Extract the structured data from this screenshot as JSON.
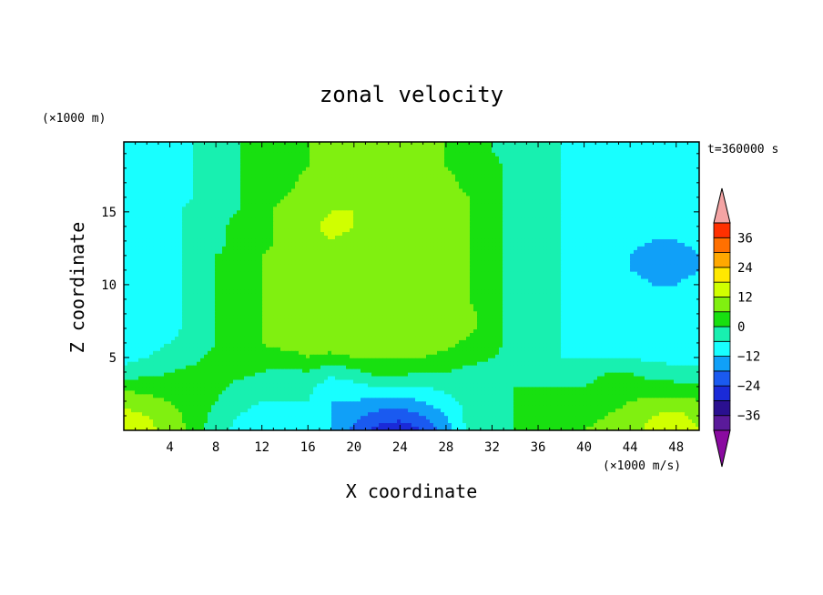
{
  "chart_data": {
    "type": "heatmap",
    "title": "zonal velocity",
    "xlabel": "X coordinate",
    "ylabel": "Z coordinate",
    "x_unit_label": "(×1000 m/s)",
    "y_unit_label": "(×1000 m)",
    "time_label": "t=360000 s",
    "xlim": [
      0,
      50
    ],
    "ylim": [
      0,
      19.8
    ],
    "x_ticks": [
      4,
      8,
      12,
      16,
      20,
      24,
      28,
      32,
      36,
      40,
      44,
      48
    ],
    "y_ticks": [
      5,
      10,
      15
    ],
    "colorbar": {
      "levels": [
        -42,
        -36,
        -30,
        -24,
        -18,
        -12,
        -6,
        0,
        6,
        12,
        18,
        24,
        30,
        36,
        42
      ],
      "tick_labels": [
        "36",
        "24",
        "12",
        "0",
        "−12",
        "−24",
        "−36"
      ],
      "tick_values": [
        36,
        24,
        12,
        0,
        -12,
        -24,
        -36
      ],
      "colors": [
        "#5a1a9a",
        "#2a1090",
        "#1a2ad8",
        "#1a5af0",
        "#10a0f8",
        "#18ffff",
        "#18f0b0",
        "#18e010",
        "#80f010",
        "#d0ff00",
        "#ffe800",
        "#ffa800",
        "#ff7000",
        "#ff3000",
        "#e01818"
      ],
      "under_color": "#8a0aa0",
      "over_color": "#f4a4a4"
    },
    "field": {
      "description_levels": "values in x1000 m/s at a coarse grid",
      "x": [
        0,
        2,
        4,
        6,
        8,
        10,
        12,
        14,
        16,
        18,
        20,
        22,
        24,
        26,
        28,
        30,
        32,
        34,
        36,
        38,
        40,
        42,
        44,
        46,
        48,
        50
      ],
      "z": [
        0,
        1,
        2,
        3,
        4,
        5,
        6,
        7,
        8,
        9,
        10,
        11,
        12,
        13,
        14,
        15,
        16,
        17,
        18,
        19,
        20
      ],
      "values": [
        [
          16,
          14,
          10,
          4,
          -4,
          -8,
          -10,
          -12,
          -10,
          -12,
          -20,
          -26,
          -28,
          -24,
          -16,
          -4,
          -2,
          0,
          0,
          4,
          6,
          8,
          10,
          14,
          16,
          12
        ],
        [
          14,
          12,
          8,
          4,
          -2,
          -6,
          -8,
          -10,
          -8,
          -12,
          -16,
          -20,
          -22,
          -18,
          -12,
          -4,
          -2,
          0,
          0,
          2,
          4,
          6,
          8,
          12,
          14,
          10
        ],
        [
          10,
          8,
          6,
          4,
          0,
          -4,
          -6,
          -6,
          -6,
          -12,
          -12,
          -14,
          -14,
          -12,
          -8,
          -4,
          -2,
          0,
          0,
          0,
          2,
          4,
          6,
          8,
          8,
          6
        ],
        [
          4,
          4,
          2,
          2,
          2,
          -2,
          -4,
          -4,
          -4,
          -10,
          -8,
          -6,
          -6,
          -6,
          -4,
          -2,
          -2,
          0,
          0,
          0,
          0,
          2,
          2,
          2,
          2,
          2
        ],
        [
          -4,
          -2,
          0,
          2,
          4,
          2,
          0,
          -2,
          0,
          -4,
          -2,
          2,
          2,
          0,
          0,
          -2,
          -2,
          -2,
          -2,
          -4,
          -2,
          0,
          0,
          -2,
          -4,
          -4
        ],
        [
          -8,
          -6,
          -4,
          -2,
          2,
          4,
          4,
          4,
          6,
          4,
          6,
          6,
          6,
          6,
          4,
          2,
          0,
          -2,
          -4,
          -6,
          -6,
          -6,
          -6,
          -8,
          -8,
          -8
        ],
        [
          -8,
          -8,
          -6,
          -4,
          0,
          4,
          6,
          8,
          8,
          10,
          10,
          10,
          10,
          10,
          8,
          4,
          2,
          -2,
          -4,
          -6,
          -8,
          -8,
          -8,
          -8,
          -10,
          -10
        ],
        [
          -10,
          -8,
          -8,
          -4,
          0,
          4,
          6,
          8,
          10,
          10,
          12,
          12,
          12,
          12,
          12,
          8,
          2,
          -2,
          -4,
          -6,
          -8,
          -8,
          -10,
          -10,
          -10,
          -10
        ],
        [
          -12,
          -10,
          -8,
          -4,
          0,
          4,
          6,
          8,
          10,
          10,
          10,
          10,
          10,
          10,
          12,
          8,
          2,
          -2,
          -4,
          -6,
          -8,
          -8,
          -10,
          -10,
          -10,
          -10
        ],
        [
          -12,
          -10,
          -8,
          -4,
          0,
          2,
          6,
          8,
          8,
          8,
          8,
          10,
          10,
          10,
          10,
          6,
          2,
          -2,
          -4,
          -6,
          -8,
          -8,
          -10,
          -10,
          -10,
          -10
        ],
        [
          -12,
          -10,
          -8,
          -4,
          0,
          2,
          6,
          8,
          8,
          8,
          10,
          10,
          10,
          10,
          10,
          6,
          2,
          -2,
          -4,
          -6,
          -8,
          -10,
          -10,
          -12,
          -12,
          -10
        ],
        [
          -12,
          -10,
          -8,
          -4,
          0,
          2,
          6,
          8,
          8,
          10,
          10,
          10,
          10,
          10,
          10,
          6,
          2,
          -2,
          -4,
          -6,
          -8,
          -10,
          -12,
          -14,
          -14,
          -12
        ],
        [
          -12,
          -10,
          -8,
          -4,
          0,
          2,
          6,
          8,
          10,
          10,
          10,
          10,
          10,
          10,
          10,
          6,
          2,
          -2,
          -4,
          -6,
          -8,
          -10,
          -12,
          -16,
          -16,
          -12
        ],
        [
          -12,
          -10,
          -8,
          -4,
          -2,
          2,
          4,
          8,
          10,
          12,
          10,
          10,
          10,
          10,
          10,
          6,
          2,
          -2,
          -4,
          -6,
          -8,
          -10,
          -10,
          -12,
          -12,
          -10
        ],
        [
          -10,
          -10,
          -8,
          -4,
          -2,
          2,
          4,
          8,
          10,
          14,
          12,
          10,
          10,
          10,
          10,
          6,
          2,
          -2,
          -4,
          -6,
          -8,
          -10,
          -10,
          -10,
          -10,
          -10
        ],
        [
          -10,
          -10,
          -8,
          -4,
          -2,
          0,
          4,
          8,
          10,
          12,
          12,
          10,
          10,
          10,
          10,
          6,
          2,
          -2,
          -4,
          -6,
          -8,
          -8,
          -10,
          -10,
          -10,
          -10
        ],
        [
          -10,
          -10,
          -8,
          -6,
          -2,
          0,
          4,
          6,
          8,
          10,
          10,
          10,
          10,
          10,
          8,
          6,
          2,
          -2,
          -4,
          -6,
          -8,
          -8,
          -8,
          -10,
          -10,
          -10
        ],
        [
          -10,
          -10,
          -8,
          -6,
          -4,
          0,
          2,
          4,
          8,
          10,
          10,
          10,
          10,
          10,
          8,
          4,
          2,
          -2,
          -4,
          -6,
          -8,
          -8,
          -8,
          -10,
          -10,
          -10
        ],
        [
          -10,
          -10,
          -8,
          -6,
          -4,
          0,
          2,
          4,
          6,
          8,
          10,
          10,
          10,
          8,
          6,
          4,
          2,
          -2,
          -4,
          -6,
          -8,
          -8,
          -8,
          -10,
          -10,
          -10
        ],
        [
          -10,
          -10,
          -8,
          -6,
          -4,
          0,
          2,
          4,
          6,
          8,
          8,
          10,
          8,
          8,
          6,
          4,
          0,
          -2,
          -4,
          -6,
          -8,
          -8,
          -8,
          -10,
          -10,
          -10
        ],
        [
          -10,
          -10,
          -8,
          -6,
          -4,
          0,
          2,
          4,
          6,
          8,
          8,
          8,
          8,
          8,
          6,
          4,
          0,
          -2,
          -4,
          -6,
          -8,
          -8,
          -8,
          -10,
          -10,
          -10
        ]
      ]
    }
  }
}
